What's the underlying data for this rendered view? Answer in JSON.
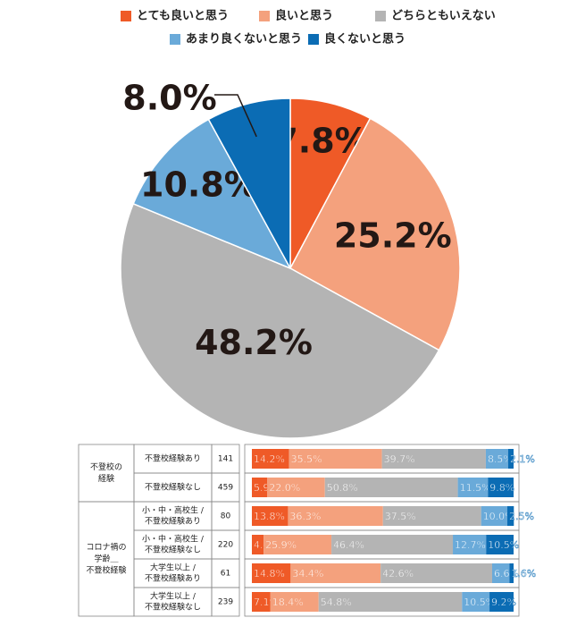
{
  "chart_data": [
    {
      "type": "pie",
      "categories": [
        "とても良いと思う",
        "良いと思う",
        "どちらともいえない",
        "あまり良くないと思う",
        "良くないと思う"
      ],
      "colors": [
        "#ef5a27",
        "#f4a17d",
        "#b4b4b4",
        "#6aaad9",
        "#0b6cb4"
      ],
      "values": [
        7.8,
        25.2,
        48.2,
        10.8,
        8.0
      ],
      "value_labels": [
        "7.8%",
        "25.2%",
        "48.2%",
        "10.8%",
        "8.0%"
      ]
    },
    {
      "type": "stacked_bar",
      "groups": [
        {
          "label": [
            "不登校の",
            "経験"
          ],
          "categories": [
            [
              "不登校経験あり"
            ],
            [
              "不登校経験なし"
            ]
          ],
          "n": [
            141,
            459
          ]
        },
        {
          "label": [
            "コロナ禍の",
            "学齢＿",
            "不登校経験"
          ],
          "categories": [
            [
              "小・中・高校生 /",
              "不登校経験あり"
            ],
            [
              "小・中・高校生 /",
              "不登校経験なし"
            ],
            [
              "大学生以上 /",
              "不登校経験あり"
            ],
            [
              "大学生以上 /",
              "不登校経験なし"
            ]
          ],
          "n": [
            80,
            220,
            61,
            239
          ]
        }
      ],
      "xlim": [
        0,
        100
      ],
      "series": [
        {
          "color": "#ef5a27",
          "values": [
            14.2,
            5.9,
            13.8,
            4.5,
            14.8,
            7.1
          ],
          "value_labels": [
            "14.2%",
            "5.9%",
            "13.8%",
            "4.5%",
            "14.8%",
            "7.1%"
          ]
        },
        {
          "color": "#f4a17d",
          "values": [
            35.5,
            22.0,
            36.3,
            25.9,
            34.4,
            18.4
          ],
          "value_labels": [
            "35.5%",
            "22.0%",
            "36.3%",
            "25.9%",
            "34.4%",
            "18.4%"
          ]
        },
        {
          "color": "#b4b4b4",
          "values": [
            39.7,
            50.8,
            37.5,
            46.4,
            42.6,
            54.8
          ],
          "value_labels": [
            "39.7%",
            "50.8%",
            "37.5%",
            "46.4%",
            "42.6%",
            "54.8%"
          ]
        },
        {
          "color": "#6aaad9",
          "values": [
            8.5,
            11.5,
            10.0,
            12.7,
            6.6,
            10.5
          ],
          "value_labels": [
            "8.5%",
            "11.5%",
            "10.0%",
            "12.7%",
            "6.6%",
            "10.5%"
          ]
        },
        {
          "color": "#0b6cb4",
          "values": [
            2.1,
            9.8,
            2.5,
            10.5,
            1.6,
            9.2
          ],
          "value_labels": [
            "2.1%",
            "9.8%",
            "2.5%",
            "10.5%",
            "1.6%",
            "9.2%"
          ]
        }
      ]
    }
  ]
}
